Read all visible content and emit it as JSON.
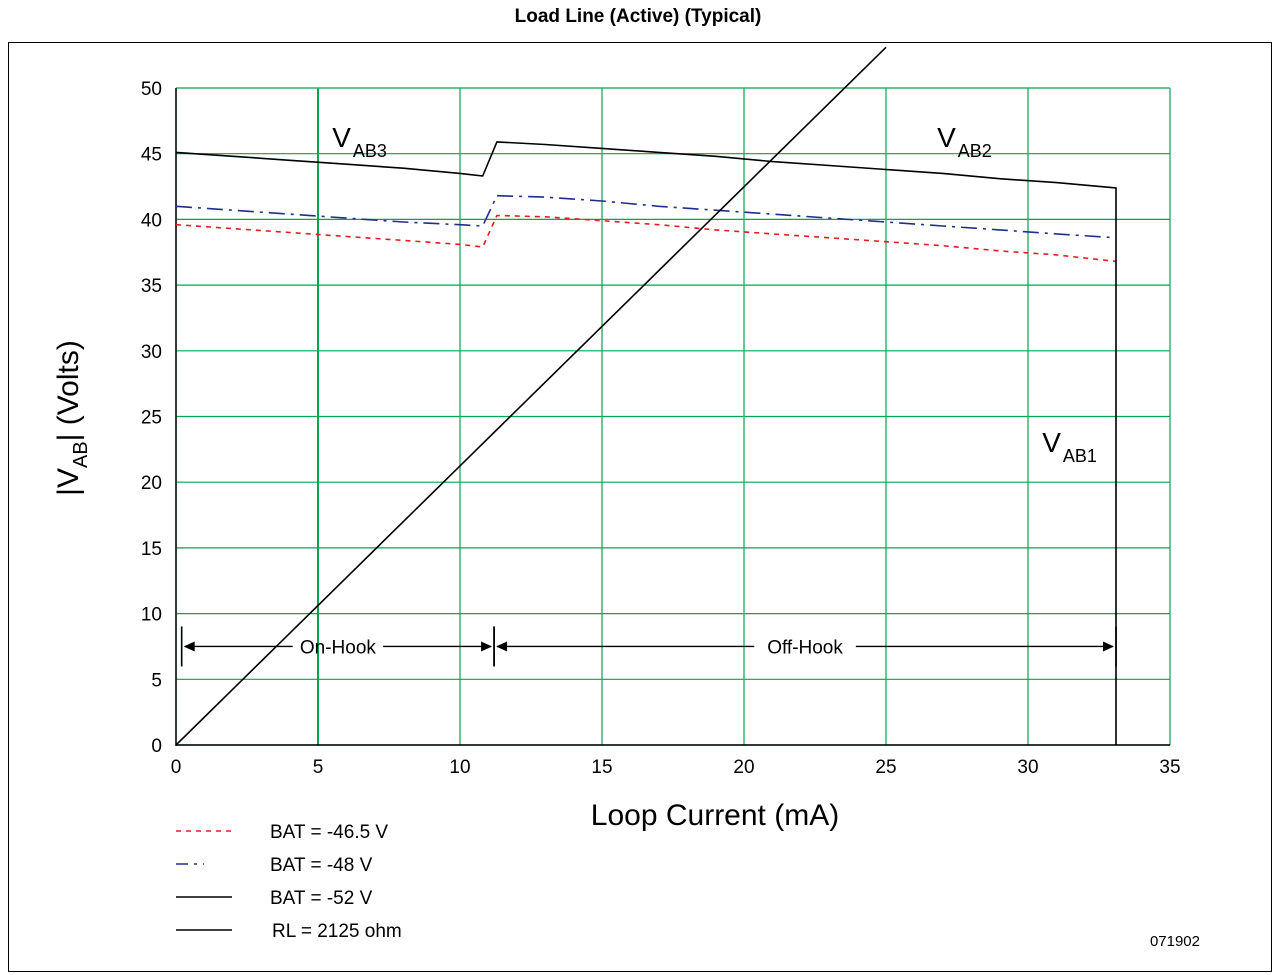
{
  "chart_data": {
    "type": "line",
    "title": "Load Line (Active) (Typical)",
    "xlabel": "Loop Current (mA)",
    "ylabel": {
      "prefix": "|V",
      "sub": "AB",
      "suffix": "| (Volts)"
    },
    "xlim": [
      0,
      35
    ],
    "ylim": [
      0,
      50
    ],
    "xticks": [
      0,
      5,
      10,
      15,
      20,
      25,
      30,
      35
    ],
    "yticks": [
      0,
      5,
      10,
      15,
      20,
      25,
      30,
      35,
      40,
      45,
      50
    ],
    "grid": true,
    "grid_color": "#00a651",
    "series": [
      {
        "name": "BAT = -46.5 V",
        "color": "#e31e24",
        "style": "dashed",
        "x": [
          0,
          2,
          4,
          6,
          8,
          10,
          10.8,
          11.3,
          13,
          15,
          17,
          19,
          21,
          23,
          25,
          27,
          29,
          31,
          33.1
        ],
        "y": [
          39.6,
          39.3,
          39.0,
          38.7,
          38.4,
          38.1,
          37.9,
          40.3,
          40.2,
          39.9,
          39.6,
          39.2,
          38.9,
          38.6,
          38.3,
          38.0,
          37.6,
          37.3,
          36.8
        ]
      },
      {
        "name": "BAT = -48 V",
        "color": "#1e2f8c",
        "style": "dashdot",
        "x": [
          0,
          2,
          4,
          6,
          8,
          10,
          10.8,
          11.3,
          13,
          15,
          17,
          19,
          21,
          23,
          25,
          27,
          29,
          31,
          33.1
        ],
        "y": [
          41.0,
          40.7,
          40.4,
          40.1,
          39.8,
          39.6,
          39.5,
          41.8,
          41.7,
          41.4,
          41.0,
          40.7,
          40.4,
          40.1,
          39.8,
          39.5,
          39.2,
          38.9,
          38.6
        ]
      },
      {
        "name": "BAT = -52 V",
        "color": "#000000",
        "style": "solid",
        "x": [
          0,
          2,
          4,
          6,
          8,
          10,
          10.8,
          11.3,
          13,
          15,
          17,
          19,
          21,
          23,
          25,
          27,
          29,
          31,
          33.1,
          33.1
        ],
        "y": [
          45.1,
          44.8,
          44.5,
          44.2,
          43.9,
          43.5,
          43.3,
          45.9,
          45.7,
          45.4,
          45.1,
          44.8,
          44.4,
          44.1,
          43.8,
          43.5,
          43.1,
          42.8,
          42.4,
          0
        ]
      },
      {
        "name": "RL = 2125 ohm",
        "color": "#000000",
        "style": "solid",
        "x": [
          0,
          25
        ],
        "y": [
          0,
          53.1
        ]
      }
    ],
    "annotations": [
      {
        "main": "V",
        "sub": "AB3",
        "x": 5.5,
        "y": 45.5
      },
      {
        "main": "V",
        "sub": "AB2",
        "x": 26.8,
        "y": 45.5
      },
      {
        "main": "V",
        "sub": "AB1",
        "x": 30.5,
        "y": 22.3
      }
    ],
    "ranges": [
      {
        "label": "On-Hook",
        "x_start": 0.2,
        "x_end": 11.2,
        "y": 7.5
      },
      {
        "label": "Off-Hook",
        "x_start": 11.2,
        "x_end": 33.1,
        "y": 7.5
      }
    ]
  },
  "legend": {
    "items": [
      {
        "label": "BAT = -46.5 V",
        "color": "#e31e24",
        "style": "dashed"
      },
      {
        "label": "BAT = -48 V",
        "color": "#1e2f8c",
        "style": "dashdot"
      },
      {
        "label": "BAT = -52 V",
        "color": "#000000",
        "style": "solid"
      },
      {
        "label": "RL = 2125 ohm",
        "color": "#000000",
        "style": "solid"
      }
    ]
  },
  "figure_id": "071902"
}
